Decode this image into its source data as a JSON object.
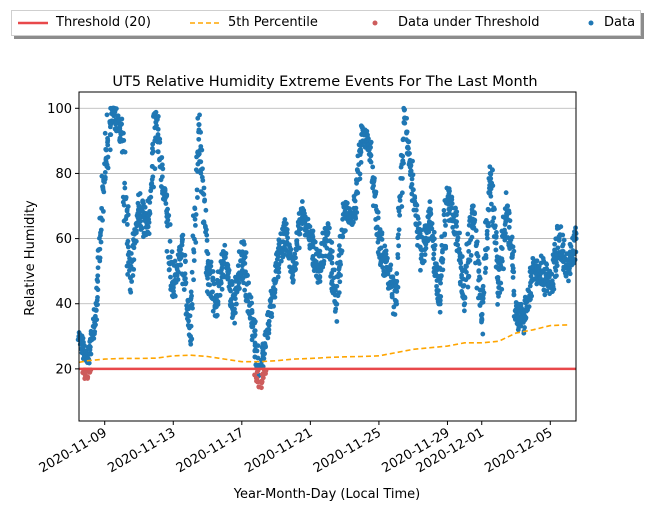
{
  "legend": {
    "items": [
      {
        "label": "Threshold (20)",
        "kind": "line",
        "color": "#e8484a"
      },
      {
        "label": "5th Percentile",
        "kind": "dashed",
        "color": "#ffa500"
      },
      {
        "label": "Data under Threshold",
        "kind": "dot",
        "color": "#cd5c5c"
      },
      {
        "label": "Data",
        "kind": "dot",
        "color": "#1f77b4"
      }
    ]
  },
  "chart_data": {
    "type": "scatter",
    "title": "UT5 Relative Humidity Extreme Events For The Last Month",
    "xlabel": "Year-Month-Day (Local Time)",
    "ylabel": "Relative Humidity",
    "xlim": [
      "2020-11-07T12:00",
      "2020-12-06T12:00"
    ],
    "ylim": [
      4,
      105
    ],
    "y_ticks": [
      20,
      40,
      60,
      80,
      100
    ],
    "x_ticks": [
      "2020-11-09",
      "2020-11-13",
      "2020-11-17",
      "2020-11-21",
      "2020-11-25",
      "2020-11-29",
      "2020-12-01",
      "2020-12-05"
    ],
    "grid": "y-major",
    "threshold": {
      "name": "Threshold (20)",
      "value": 20,
      "color": "#e8484a"
    },
    "percentile_5th": {
      "name": "5th Percentile",
      "color": "#ffa500",
      "x": [
        "2020-11-07",
        "2020-11-08",
        "2020-11-09",
        "2020-11-10",
        "2020-11-11",
        "2020-11-12",
        "2020-11-13",
        "2020-11-14",
        "2020-11-15",
        "2020-11-16",
        "2020-11-17",
        "2020-11-18",
        "2020-11-19",
        "2020-11-20",
        "2020-11-21",
        "2020-11-22",
        "2020-11-23",
        "2020-11-24",
        "2020-11-25",
        "2020-11-26",
        "2020-11-27",
        "2020-11-28",
        "2020-11-29",
        "2020-11-30",
        "2020-12-01",
        "2020-12-02",
        "2020-12-03",
        "2020-12-04",
        "2020-12-05",
        "2020-12-06"
      ],
      "y": [
        22,
        22.5,
        23,
        23.2,
        23.2,
        23.3,
        24,
        24.2,
        23.8,
        23,
        22.2,
        22.2,
        22.5,
        23,
        23.2,
        23.5,
        23.7,
        23.8,
        24,
        25,
        26,
        26.5,
        27,
        28,
        28,
        28.5,
        31,
        32,
        33.3,
        33.5
      ]
    },
    "data_series": {
      "name": "Data",
      "color": "#1f77b4",
      "x": [
        "2020-11-07T12:00",
        "2020-11-08T00:00",
        "2020-11-08T12:00",
        "2020-11-09T00:00",
        "2020-11-09T12:00",
        "2020-11-10T00:00",
        "2020-11-10T12:00",
        "2020-11-11T00:00",
        "2020-11-11T12:00",
        "2020-11-12T00:00",
        "2020-11-12T12:00",
        "2020-11-13T00:00",
        "2020-11-13T12:00",
        "2020-11-14T00:00",
        "2020-11-14T12:00",
        "2020-11-15T00:00",
        "2020-11-15T12:00",
        "2020-11-16T00:00",
        "2020-11-16T12:00",
        "2020-11-17T00:00",
        "2020-11-17T12:00",
        "2020-11-18T00:00",
        "2020-11-18T12:00",
        "2020-11-19T00:00",
        "2020-11-19T12:00",
        "2020-11-20T00:00",
        "2020-11-20T12:00",
        "2020-11-21T00:00",
        "2020-11-21T12:00",
        "2020-11-22T00:00",
        "2020-11-22T12:00",
        "2020-11-23T00:00",
        "2020-11-23T12:00",
        "2020-11-24T00:00",
        "2020-11-24T12:00",
        "2020-11-25T00:00",
        "2020-11-25T12:00",
        "2020-11-26T00:00",
        "2020-11-26T12:00",
        "2020-11-27T00:00",
        "2020-11-27T12:00",
        "2020-11-28T00:00",
        "2020-11-28T12:00",
        "2020-11-29T00:00",
        "2020-11-29T12:00",
        "2020-11-30T00:00",
        "2020-11-30T12:00",
        "2020-12-01T00:00",
        "2020-12-01T12:00",
        "2020-12-02T00:00",
        "2020-12-02T12:00",
        "2020-12-03T00:00",
        "2020-12-03T12:00",
        "2020-12-04T00:00",
        "2020-12-04T12:00",
        "2020-12-05T00:00",
        "2020-12-05T12:00",
        "2020-12-06T00:00",
        "2020-12-06T12:00"
      ],
      "y": [
        30,
        22,
        38,
        83,
        100,
        90,
        48,
        70,
        62,
        97,
        72,
        45,
        58,
        30,
        95,
        50,
        40,
        55,
        38,
        55,
        40,
        18,
        32,
        50,
        62,
        50,
        68,
        60,
        50,
        62,
        40,
        70,
        65,
        92,
        88,
        60,
        50,
        40,
        97,
        75,
        55,
        68,
        40,
        72,
        65,
        42,
        70,
        35,
        80,
        45,
        70,
        38,
        35,
        50,
        50,
        45,
        60,
        52,
        60
      ],
      "spread": [
        5,
        4,
        8,
        16,
        6,
        16,
        12,
        12,
        14,
        6,
        14,
        8,
        10,
        10,
        8,
        12,
        10,
        8,
        8,
        12,
        8,
        6,
        10,
        10,
        8,
        10,
        6,
        10,
        10,
        10,
        12,
        6,
        10,
        6,
        8,
        12,
        10,
        12,
        8,
        10,
        10,
        8,
        12,
        10,
        10,
        12,
        10,
        10,
        10,
        12,
        12,
        10,
        8,
        8,
        10,
        12,
        10,
        10,
        8
      ]
    },
    "under_threshold": {
      "name": "Data under Threshold",
      "color": "#cd5c5c",
      "x": [
        "2020-11-07T18:00",
        "2020-11-07T21:00",
        "2020-11-08T00:00",
        "2020-11-08T03:00",
        "2020-11-17T21:00",
        "2020-11-18T00:00",
        "2020-11-18T03:00",
        "2020-11-18T06:00"
      ],
      "y": [
        19,
        18,
        17.5,
        19,
        17,
        14.5,
        16,
        18.5
      ]
    }
  }
}
